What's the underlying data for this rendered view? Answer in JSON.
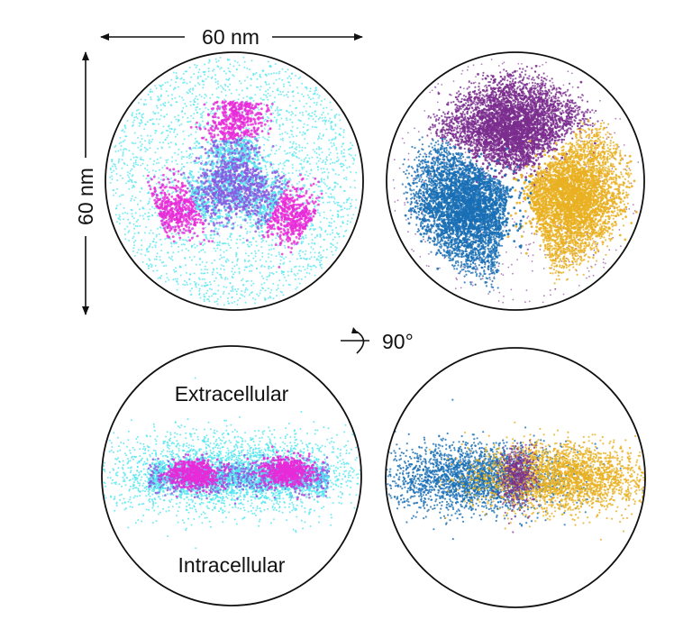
{
  "scale": {
    "horizontal_label": "60 nm",
    "vertical_label": "60 nm"
  },
  "rotation": {
    "label": "90°"
  },
  "side_view": {
    "top_label": "Extracellular",
    "bottom_label": "Intracellular"
  },
  "colors": {
    "cyan": "#4fe6f0",
    "magenta": "#e82ad8",
    "violet": "#8a58e0",
    "purple": "#7b2d8e",
    "blue": "#1a6fb5",
    "gold": "#e9b021",
    "outline": "#111111"
  }
}
